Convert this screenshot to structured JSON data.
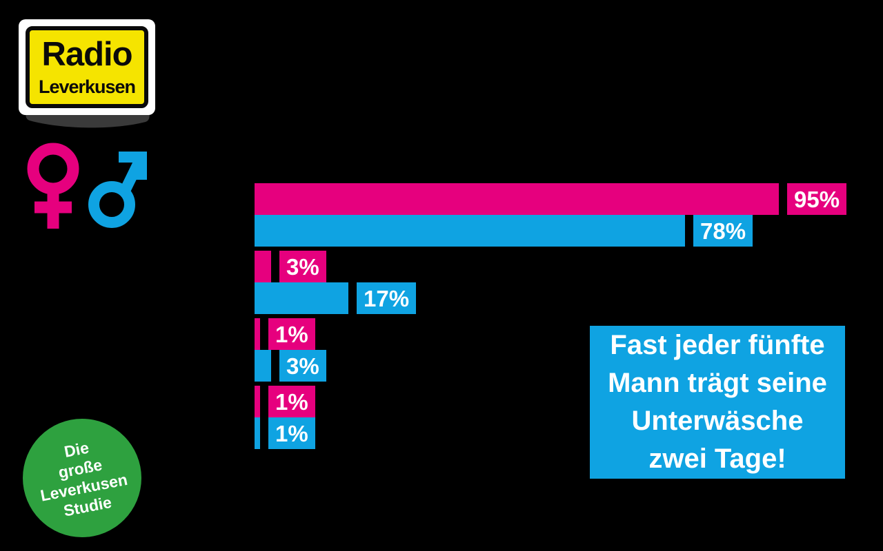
{
  "colors": {
    "background": "#000000",
    "pink": "#E6007E",
    "blue": "#0FA3E2",
    "green": "#2EA13F",
    "logo_yellow": "#F5E400",
    "logo_black": "#0A0A0A",
    "logo_white": "#FFFFFF",
    "logo_shadow_gray": "#3A3A3A",
    "label_text": "#FFFFFF"
  },
  "logo": {
    "line1": "Radio",
    "line2": "Leverkusen"
  },
  "legend_icons": {
    "female_symbol": "♀",
    "male_symbol": "♂"
  },
  "chart_data": {
    "type": "bar",
    "orientation": "horizontal",
    "title": "",
    "xlabel": "",
    "ylabel": "",
    "xlim": [
      0,
      100
    ],
    "grid": false,
    "axes_visible": false,
    "legend_position": "top-left (gender symbols)",
    "legend": [
      {
        "name": "female",
        "symbol": "♀",
        "color": "#E6007E"
      },
      {
        "name": "male",
        "symbol": "♂",
        "color": "#0FA3E2"
      }
    ],
    "groups": [
      {
        "female": 95,
        "male": 78
      },
      {
        "female": 3,
        "male": 17
      },
      {
        "female": 1,
        "male": 3
      },
      {
        "female": 1,
        "male": 1
      }
    ],
    "bar_labels": [
      [
        "95%",
        "78%"
      ],
      [
        "3%",
        "17%"
      ],
      [
        "1%",
        "3%"
      ],
      [
        "1%",
        "1%"
      ]
    ]
  },
  "callout": {
    "bg": "#0FA3E2",
    "lines": [
      "Fast jeder fünfte",
      "Mann trägt seine",
      "Unterwäsche",
      "zwei Tage!"
    ]
  },
  "badge": {
    "bg": "#2EA13F",
    "lines": [
      "Die",
      "große",
      "Leverkusen",
      "Studie"
    ]
  }
}
